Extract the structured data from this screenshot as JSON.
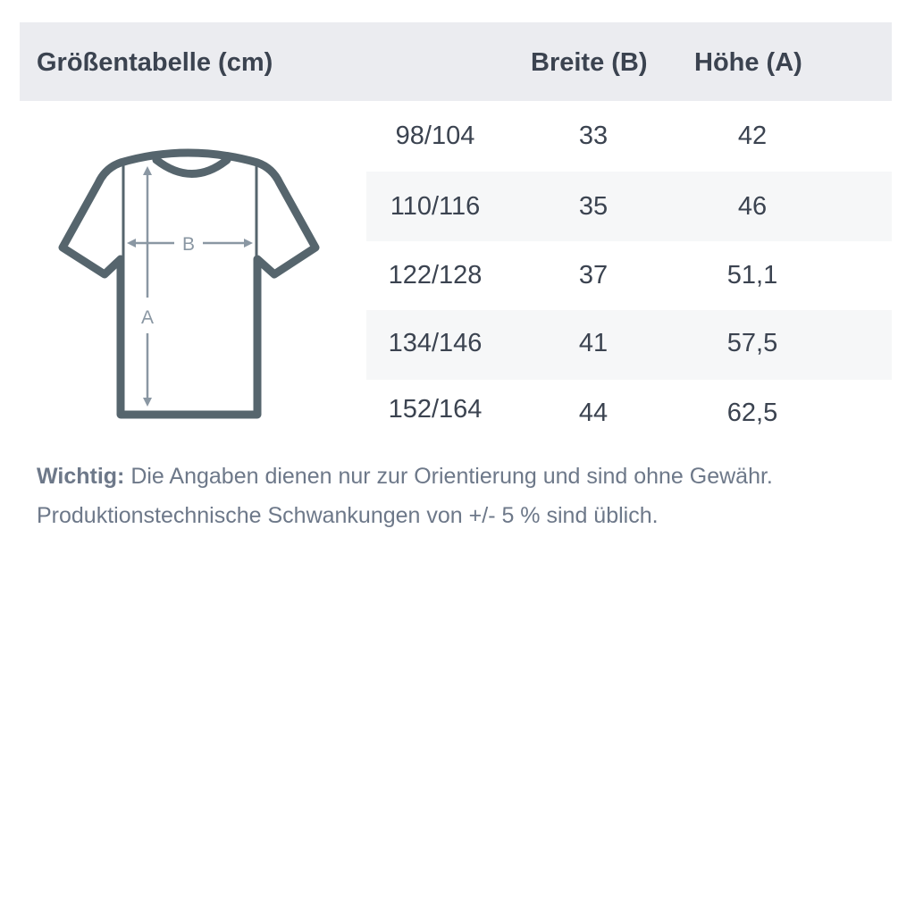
{
  "header": {
    "title": "Größentabelle (cm)",
    "col_width": "Breite (B)",
    "col_height": "Höhe (A)"
  },
  "diagram": {
    "label_width": "B",
    "label_height": "A",
    "outline_color": "#56656d",
    "arrow_color": "#8a97a3"
  },
  "rows": [
    {
      "size": "98/104",
      "width": "33",
      "height": "42"
    },
    {
      "size": "110/116",
      "width": "35",
      "height": "46"
    },
    {
      "size": "122/128",
      "width": "37",
      "height": "51,1"
    },
    {
      "size": "134/146",
      "width": "41",
      "height": "57,5"
    },
    {
      "size": "152/164",
      "width": "44",
      "height": "62,5"
    }
  ],
  "note": {
    "label": "Wichtig:",
    "line1": "Die Angaben dienen nur zur Orientierung und sind ohne Gewähr.",
    "line2": "Produktionstechnische Schwankungen von +/- 5 % sind üblich."
  }
}
